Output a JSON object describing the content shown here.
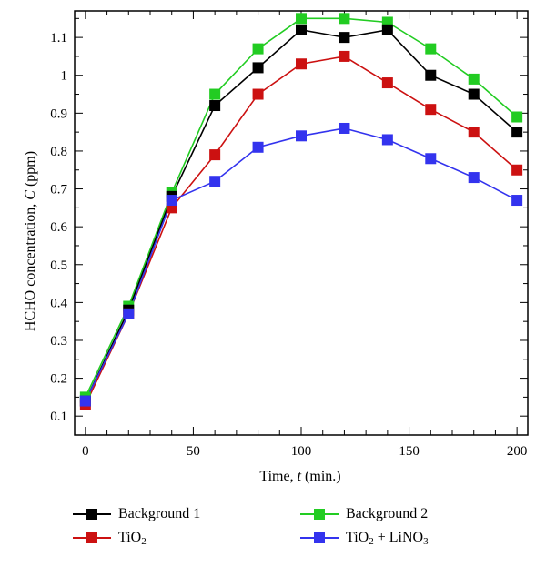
{
  "chart_data": {
    "type": "line",
    "xlabel_prefix": "Time, ",
    "xlabel_var": "t",
    "xlabel_suffix": " (min.)",
    "ylabel_prefix": "HCHO concentration, ",
    "ylabel_var": "C",
    "ylabel_suffix": " (ppm)",
    "xlim": [
      -5,
      205
    ],
    "ylim": [
      0.05,
      1.17
    ],
    "x_ticks": [
      0,
      50,
      100,
      150,
      200
    ],
    "x_tick_labels": [
      "0",
      "50",
      "100",
      "150",
      "200"
    ],
    "y_ticks": [
      0.1,
      0.2,
      0.3,
      0.4,
      0.5,
      0.6,
      0.7,
      0.8,
      0.9,
      1.0,
      1.1
    ],
    "y_tick_labels": [
      "0.1",
      "0.2",
      "0.3",
      "0.4",
      "0.5",
      "0.6",
      "0.7",
      "0.8",
      "0.9",
      "1",
      "1.1"
    ],
    "x": [
      0,
      20,
      40,
      60,
      80,
      100,
      120,
      140,
      160,
      180,
      200
    ],
    "series": [
      {
        "name": "Background 1",
        "color": "#000000",
        "values": [
          0.14,
          0.38,
          0.68,
          0.92,
          1.02,
          1.12,
          1.1,
          1.12,
          1.0,
          0.95,
          0.85
        ]
      },
      {
        "name": "TiO2",
        "color": "#cc1111",
        "values": [
          0.13,
          0.37,
          0.65,
          0.79,
          0.95,
          1.03,
          1.05,
          0.98,
          0.91,
          0.85,
          0.75
        ]
      },
      {
        "name": "Background 2",
        "color": "#22cc22",
        "values": [
          0.15,
          0.39,
          0.69,
          0.95,
          1.07,
          1.15,
          1.15,
          1.14,
          1.07,
          0.99,
          0.89
        ]
      },
      {
        "name": "TiO2 + LiNO3",
        "color": "#3333ee",
        "values": [
          0.14,
          0.37,
          0.67,
          0.72,
          0.81,
          0.84,
          0.86,
          0.83,
          0.78,
          0.73,
          0.67
        ]
      }
    ],
    "grid": false,
    "legend_position": "bottom"
  },
  "legend": {
    "bg1": "Background 1",
    "bg2": "Background 2",
    "tio2_base": "TiO",
    "tio2_sub": "2",
    "tio2lin_base": "TiO",
    "tio2lin_sub1": "2",
    "tio2lin_mid": " + LiNO",
    "tio2lin_sub2": "3"
  }
}
